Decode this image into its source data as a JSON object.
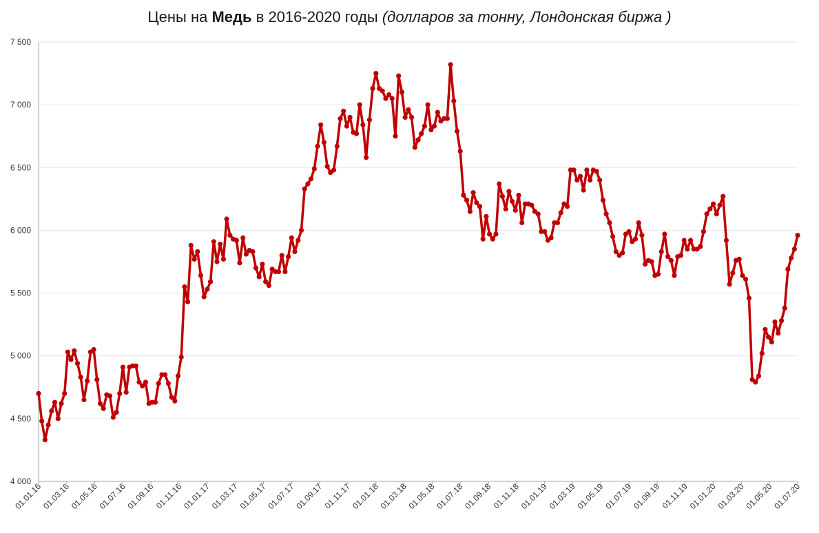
{
  "title": {
    "prefix": "Цены на ",
    "metal": "Медь",
    "middle": " в 2016-2020 годы ",
    "unit_note": "(долларов за тонну, Лондонская биржа )"
  },
  "colors": {
    "series": "#C00000",
    "grid": "#e6e6e6",
    "axis": "#a6a6a6"
  },
  "chart_data": {
    "type": "line",
    "title": "Цены на Медь в 2016-2020 годы (долларов за тонну, Лондонская биржа )",
    "xlabel": "",
    "ylabel": "",
    "ylim": [
      4000,
      7500
    ],
    "ytick_values": [
      4000,
      4500,
      5000,
      5500,
      6000,
      6500,
      7000,
      7500
    ],
    "ytick_labels": [
      "4 000",
      "4 500",
      "5 000",
      "5 500",
      "6 000",
      "6 500",
      "7 000",
      "7 500"
    ],
    "xtick_labels": [
      "01.01.16",
      "01.03.16",
      "01.05.16",
      "01.07.16",
      "01.09.16",
      "01.11.16",
      "01.01.17",
      "01.03.17",
      "01.05.17",
      "01.07.17",
      "01.09.17",
      "01.11.17",
      "01.01.18",
      "01.03.18",
      "01.05.18",
      "01.07.18",
      "01.09.18",
      "01.11.18",
      "01.01.19",
      "01.03.19",
      "01.05.19",
      "01.07.19",
      "01.09.19",
      "01.11.19",
      "01.01.20",
      "01.03.20",
      "01.05.20",
      "01.07.20"
    ],
    "grid": "horizontal",
    "legend": "none",
    "series": [
      {
        "values": [
          4700,
          4480,
          4330,
          4450,
          4560,
          4630,
          4500,
          4620,
          4700,
          5030,
          4970,
          5040,
          4940,
          4830,
          4650,
          4800,
          5030,
          5050,
          4810,
          4620,
          4580,
          4690,
          4680,
          4510,
          4550,
          4700,
          4910,
          4710,
          4910,
          4920,
          4920,
          4790,
          4760,
          4790,
          4620,
          4630,
          4630,
          4780,
          4850,
          4850,
          4780,
          4670,
          4640,
          4840,
          4990,
          5550,
          5430,
          5880,
          5770,
          5830,
          5640,
          5470,
          5530,
          5590,
          5910,
          5750,
          5890,
          5770,
          6090,
          5960,
          5930,
          5920,
          5740,
          5940,
          5810,
          5840,
          5830,
          5700,
          5630,
          5730,
          5590,
          5560,
          5690,
          5670,
          5670,
          5800,
          5670,
          5790,
          5940,
          5830,
          5920,
          6000,
          6330,
          6370,
          6410,
          6490,
          6670,
          6840,
          6700,
          6510,
          6460,
          6480,
          6670,
          6890,
          6950,
          6830,
          6900,
          6780,
          6770,
          7000,
          6840,
          6580,
          6880,
          7130,
          7250,
          7130,
          7110,
          7050,
          7080,
          7050,
          6750,
          7230,
          7100,
          6900,
          6960,
          6900,
          6660,
          6720,
          6770,
          6830,
          7000,
          6800,
          6830,
          6940,
          6870,
          6890,
          6890,
          7320,
          7030,
          6790,
          6630,
          6280,
          6240,
          6150,
          6300,
          6220,
          6190,
          5930,
          6110,
          5970,
          5930,
          5970,
          6370,
          6270,
          6170,
          6310,
          6230,
          6160,
          6280,
          6060,
          6210,
          6210,
          6200,
          6150,
          6130,
          5990,
          5990,
          5920,
          5940,
          6060,
          6060,
          6140,
          6210,
          6190,
          6480,
          6480,
          6400,
          6430,
          6320,
          6480,
          6400,
          6480,
          6470,
          6400,
          6240,
          6130,
          6060,
          5950,
          5830,
          5800,
          5820,
          5970,
          5990,
          5910,
          5930,
          6060,
          5960,
          5730,
          5760,
          5750,
          5640,
          5650,
          5830,
          5970,
          5790,
          5760,
          5640,
          5790,
          5800,
          5920,
          5850,
          5920,
          5850,
          5850,
          5870,
          5990,
          6130,
          6170,
          6210,
          6130,
          6200,
          6270,
          5920,
          5570,
          5660,
          5760,
          5770,
          5640,
          5610,
          5460,
          4810,
          4790,
          4840,
          5020,
          5210,
          5150,
          5110,
          5270,
          5180,
          5280,
          5380,
          5690,
          5780,
          5850,
          5960
        ]
      }
    ]
  }
}
